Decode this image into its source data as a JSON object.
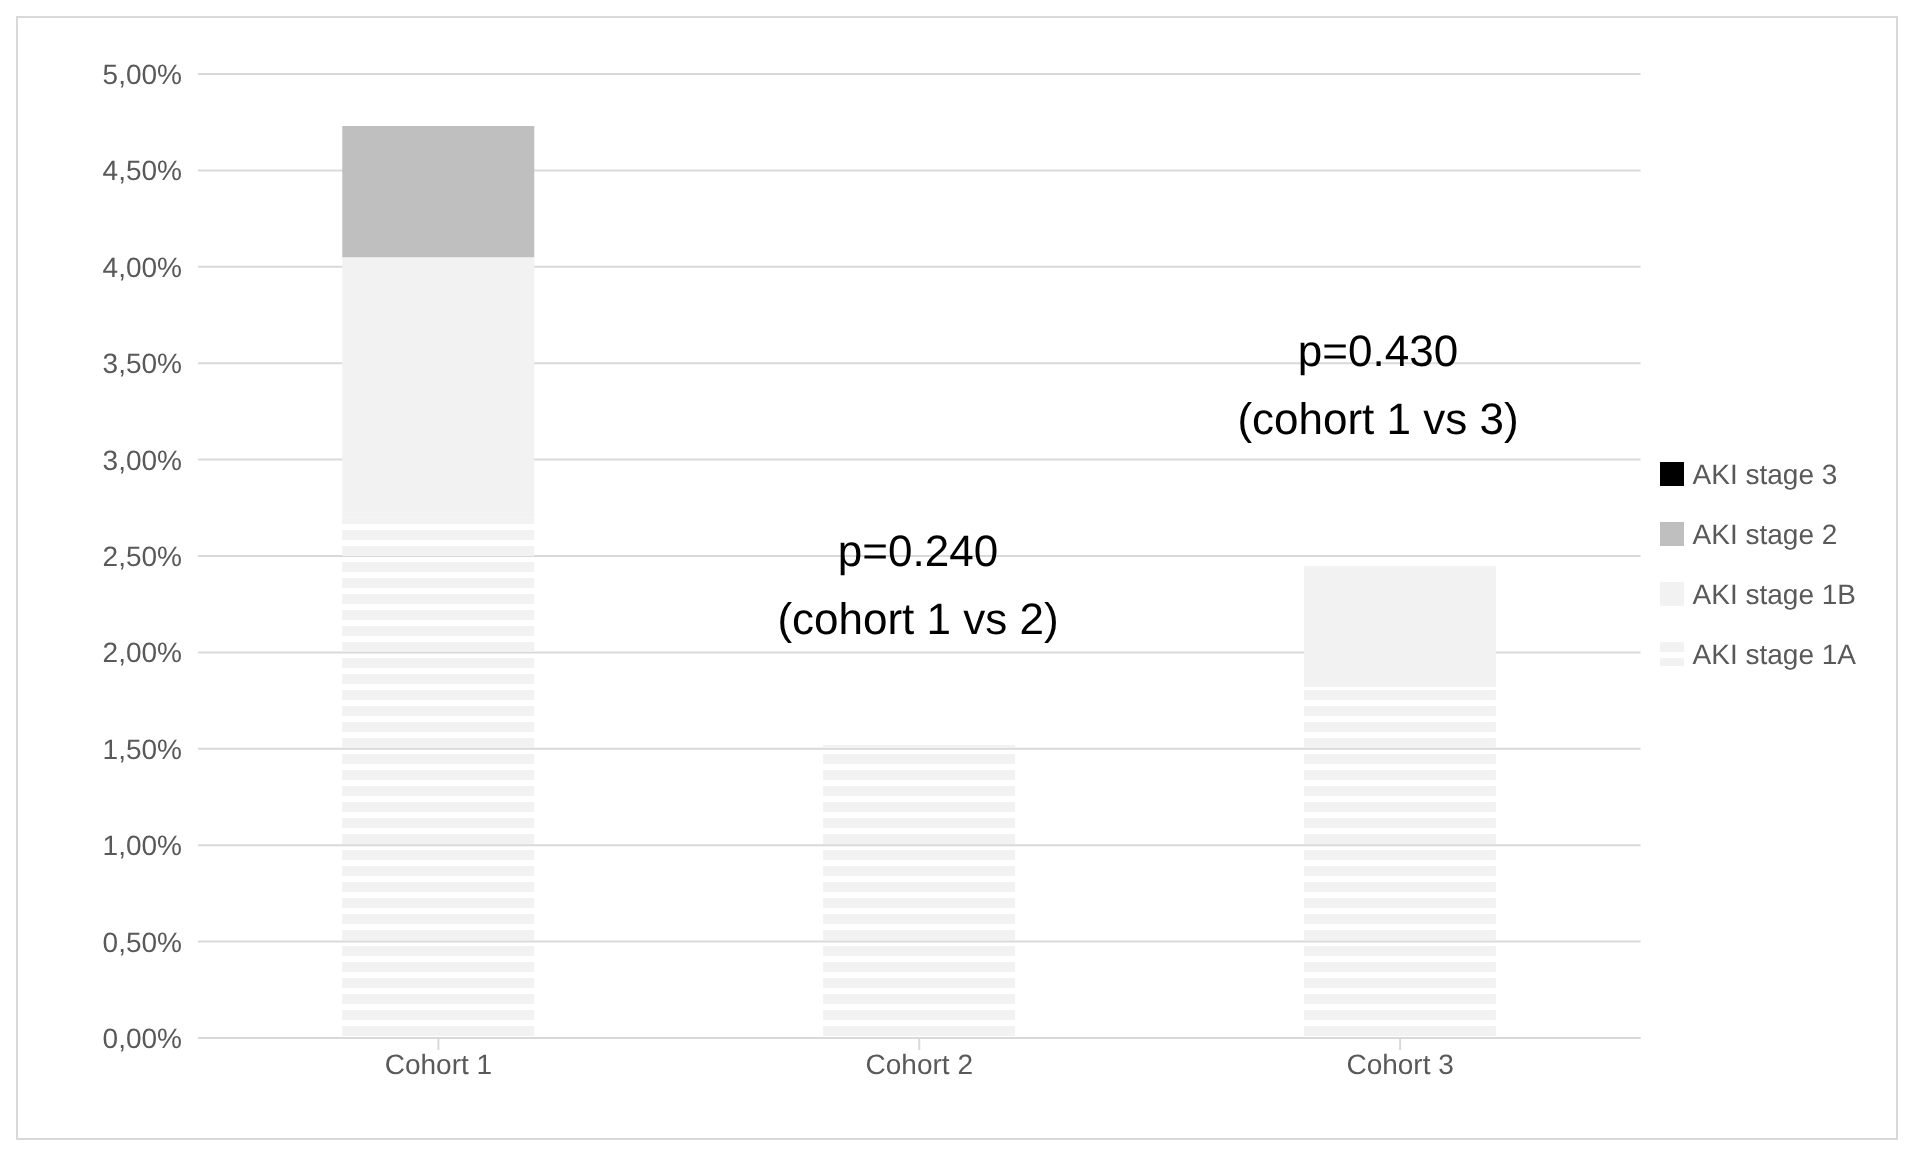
{
  "chart_data": {
    "type": "bar",
    "stacked": true,
    "categories": [
      "Cohort 1",
      "Cohort 2",
      "Cohort 3"
    ],
    "series": [
      {
        "name": "AKI stage 1A",
        "color": "#f2f2f2",
        "values": [
          2.7,
          1.52,
          1.82
        ]
      },
      {
        "name": "AKI stage 1B",
        "color": "#f2f2f2",
        "values": [
          1.35,
          0,
          0.63
        ]
      },
      {
        "name": "AKI stage 2",
        "color": "#bfbfbf",
        "values": [
          0.68,
          0,
          0
        ]
      },
      {
        "name": "AKI stage 3",
        "color": "#000000",
        "values": [
          0,
          0,
          0
        ]
      }
    ],
    "ylim": [
      0,
      5
    ],
    "yticks": [
      {
        "value": 0,
        "label": "0,00%"
      },
      {
        "value": 0.5,
        "label": "0,50%"
      },
      {
        "value": 1,
        "label": "1,00%"
      },
      {
        "value": 1.5,
        "label": "1,50%"
      },
      {
        "value": 2,
        "label": "2,00%"
      },
      {
        "value": 2.5,
        "label": "2,50%"
      },
      {
        "value": 3,
        "label": "3,00%"
      },
      {
        "value": 3.5,
        "label": "3,50%"
      },
      {
        "value": 4,
        "label": "4,00%"
      },
      {
        "value": 4.5,
        "label": "4,50%"
      },
      {
        "value": 5,
        "label": "5,00%"
      }
    ],
    "grid": "y",
    "legend": "right",
    "annotations": [
      "p=0.240\n(cohort 1 vs 2)",
      "p=0.430\n(cohort 1 vs 3)"
    ]
  }
}
